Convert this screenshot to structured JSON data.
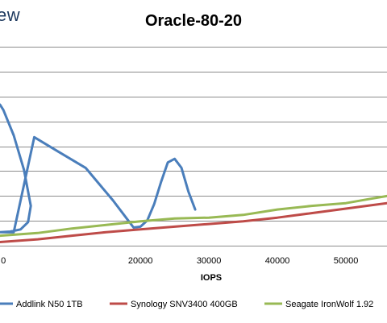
{
  "brand": "ew",
  "chart_data": {
    "type": "line",
    "title": "Oracle-80-20",
    "xlabel": "IOPS",
    "ylabel": "",
    "xlim": [
      -500,
      56000
    ],
    "ylim": [
      0,
      11
    ],
    "x_ticks": [
      "0",
      "20000",
      "30000",
      "40000",
      "50000"
    ],
    "x_tick_values": [
      0,
      20000,
      30000,
      40000,
      50000
    ],
    "grid": "horizontal",
    "legend_position": "bottom",
    "colors": {
      "Addlink N50 1TB": "#4a7ebb",
      "Synology SNV3400 400GB": "#be4b48",
      "Seagate IronWolf 1.92": "#98b954"
    },
    "series": [
      {
        "name": "Addlink N50 1TB",
        "x": [
          -500,
          0,
          1500,
          3000,
          4000,
          3600,
          2500,
          1000,
          -500,
          1500,
          4500,
          8000,
          12000,
          16000,
          18000,
          19000,
          20000,
          21000,
          22000,
          23000,
          24000,
          25000,
          26000,
          27000,
          28000
        ],
        "y": [
          7.8,
          7.5,
          6.1,
          4.2,
          2.2,
          1.3,
          0.9,
          0.78,
          0.75,
          0.74,
          6.0,
          5.2,
          4.3,
          2.5,
          1.5,
          1.0,
          1.05,
          1.4,
          2.3,
          3.5,
          4.6,
          4.8,
          4.3,
          3.0,
          2.0
        ]
      },
      {
        "name": "Synology SNV3400 400GB",
        "x": [
          -500,
          5000,
          10000,
          15000,
          20000,
          25000,
          30000,
          35000,
          40000,
          45000,
          50000,
          56000
        ],
        "y": [
          0.2,
          0.35,
          0.55,
          0.75,
          0.9,
          1.05,
          1.2,
          1.35,
          1.55,
          1.8,
          2.05,
          2.35
        ]
      },
      {
        "name": "Seagate IronWolf 1.92",
        "x": [
          -500,
          5000,
          10000,
          15000,
          20000,
          25000,
          30000,
          35000,
          40000,
          45000,
          50000,
          53000,
          56000
        ],
        "y": [
          0.55,
          0.7,
          0.95,
          1.15,
          1.35,
          1.5,
          1.55,
          1.7,
          2.0,
          2.2,
          2.35,
          2.55,
          2.75
        ]
      }
    ]
  }
}
